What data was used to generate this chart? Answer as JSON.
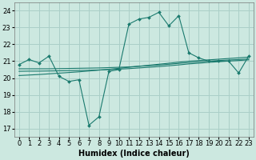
{
  "xlabel": "Humidex (Indice chaleur)",
  "bg_color": "#cce8e0",
  "grid_color": "#aacfc8",
  "line_color": "#1a7a6e",
  "xlim": [
    -0.5,
    23.5
  ],
  "ylim": [
    16.5,
    24.5
  ],
  "yticks": [
    17,
    18,
    19,
    20,
    21,
    22,
    23,
    24
  ],
  "xticks": [
    0,
    1,
    2,
    3,
    4,
    5,
    6,
    7,
    8,
    9,
    10,
    11,
    12,
    13,
    14,
    15,
    16,
    17,
    18,
    19,
    20,
    21,
    22,
    23
  ],
  "series": {
    "main": [
      20.8,
      21.1,
      20.9,
      21.3,
      20.1,
      19.8,
      19.9,
      17.2,
      17.7,
      20.4,
      20.5,
      23.2,
      23.5,
      23.6,
      23.9,
      23.1,
      23.7,
      21.5,
      21.2,
      21.0,
      21.0,
      21.0,
      20.3,
      21.3
    ],
    "smooth1": [
      20.55,
      20.55,
      20.55,
      20.55,
      20.56,
      20.57,
      20.58,
      20.59,
      20.6,
      20.62,
      20.64,
      20.66,
      20.7,
      20.73,
      20.77,
      20.82,
      20.87,
      20.92,
      20.96,
      21.0,
      21.04,
      21.07,
      21.1,
      21.13
    ],
    "smooth2": [
      20.4,
      20.41,
      20.41,
      20.42,
      20.43,
      20.44,
      20.45,
      20.46,
      20.48,
      20.5,
      20.53,
      20.56,
      20.6,
      20.64,
      20.68,
      20.73,
      20.78,
      20.84,
      20.88,
      20.93,
      20.97,
      21.01,
      21.04,
      21.08
    ],
    "trend": [
      20.15,
      20.18,
      20.21,
      20.25,
      20.29,
      20.33,
      20.37,
      20.42,
      20.47,
      20.52,
      20.58,
      20.64,
      20.7,
      20.76,
      20.82,
      20.88,
      20.94,
      21.0,
      21.04,
      21.08,
      21.12,
      21.16,
      21.2,
      21.24
    ]
  },
  "axis_fontsize": 7,
  "tick_fontsize": 6
}
